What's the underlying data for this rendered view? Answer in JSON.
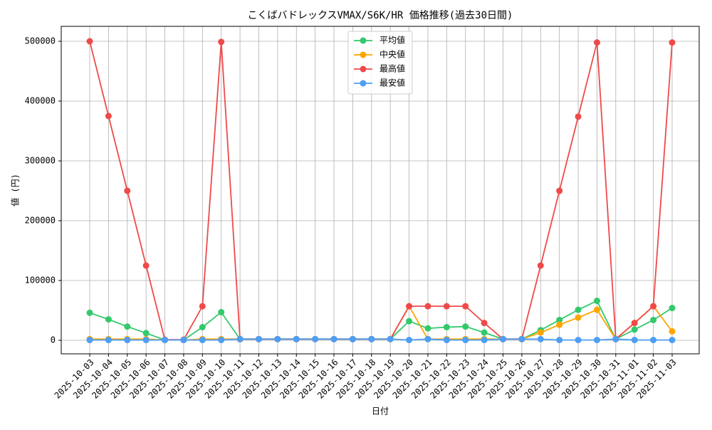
{
  "chart_data": {
    "type": "line",
    "title": "こくばバドレックスVMAX/S6K/HR 価格推移(過去30日間)",
    "x_label": "日付",
    "y_label": "値 (円)",
    "categories": [
      "2025-10-03",
      "2025-10-04",
      "2025-10-05",
      "2025-10-06",
      "2025-10-07",
      "2025-10-08",
      "2025-10-09",
      "2025-10-10",
      "2025-10-11",
      "2025-10-12",
      "2025-10-13",
      "2025-10-14",
      "2025-10-15",
      "2025-10-16",
      "2025-10-17",
      "2025-10-18",
      "2025-10-19",
      "2025-10-20",
      "2025-10-21",
      "2025-10-22",
      "2025-10-23",
      "2025-10-24",
      "2025-10-25",
      "2025-10-26",
      "2025-10-27",
      "2025-10-28",
      "2025-10-29",
      "2025-10-30",
      "2025-10-31",
      "2025-11-01",
      "2025-11-02",
      "2025-11-03"
    ],
    "series": [
      {
        "name": "平均値",
        "color": "#33c96b",
        "values": [
          46000,
          35000,
          23000,
          12000,
          500,
          500,
          22000,
          47000,
          2000,
          2000,
          2000,
          2000,
          2000,
          2000,
          2000,
          2000,
          2000,
          32000,
          20000,
          22000,
          23000,
          13000,
          2000,
          2000,
          17000,
          34000,
          51000,
          66000,
          2000,
          18000,
          34000,
          54000
        ]
      },
      {
        "name": "中央値",
        "color": "#ffa500",
        "values": [
          2000,
          2000,
          2000,
          2000,
          500,
          500,
          2000,
          2000,
          2000,
          2000,
          2000,
          2000,
          2000,
          2000,
          2000,
          2000,
          2000,
          57000,
          2000,
          2000,
          2000,
          2000,
          2000,
          2000,
          13000,
          26000,
          38000,
          51000,
          2000,
          29000,
          57000,
          15000
        ]
      },
      {
        "name": "最高値",
        "color": "#ef4a4a",
        "values": [
          500000,
          375000,
          250000,
          125000,
          1000,
          1000,
          57000,
          499000,
          2000,
          2000,
          2000,
          2000,
          2000,
          2000,
          2000,
          2000,
          2000,
          57000,
          57000,
          57000,
          57000,
          29000,
          2000,
          2000,
          125000,
          250000,
          374000,
          498000,
          2000,
          29000,
          57000,
          498000
        ]
      },
      {
        "name": "最安値",
        "color": "#4d9ef5",
        "values": [
          500,
          500,
          500,
          500,
          500,
          500,
          500,
          500,
          2000,
          2000,
          2000,
          2000,
          2000,
          2000,
          2000,
          2000,
          2000,
          500,
          2000,
          500,
          500,
          500,
          2000,
          2000,
          2000,
          500,
          500,
          500,
          2000,
          500,
          500,
          500
        ]
      }
    ],
    "ylim": [
      -22600,
      525000
    ],
    "yticks": [
      0,
      100000,
      200000,
      300000,
      400000,
      500000
    ],
    "grid": true,
    "legend": "upper center"
  }
}
